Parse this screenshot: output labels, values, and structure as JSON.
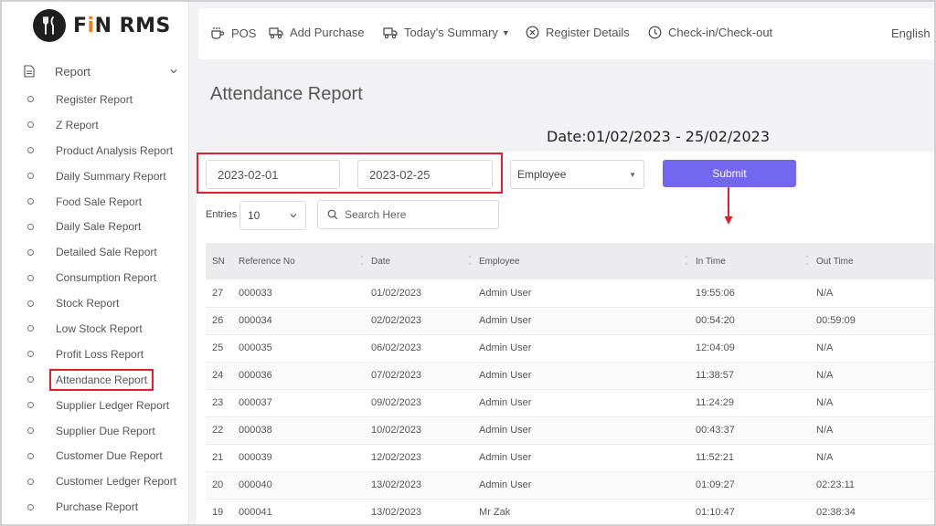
{
  "brand": {
    "prefix": "F",
    "accent": "i",
    "suffix": "N RMS",
    "accent_color": "#ef7f1a"
  },
  "sidebar": {
    "section_label": "Report",
    "items": [
      {
        "label": "Register Report"
      },
      {
        "label": "Z Report"
      },
      {
        "label": "Product Analysis Report"
      },
      {
        "label": "Daily Summary Report"
      },
      {
        "label": "Food Sale Report"
      },
      {
        "label": "Daily Sale Report"
      },
      {
        "label": "Detailed Sale Report"
      },
      {
        "label": "Consumption Report"
      },
      {
        "label": "Stock Report"
      },
      {
        "label": "Low Stock Report"
      },
      {
        "label": "Profit Loss Report"
      },
      {
        "label": "Attendance Report",
        "active": true
      },
      {
        "label": "Supplier Ledger Report"
      },
      {
        "label": "Supplier Due Report"
      },
      {
        "label": "Customer Due Report"
      },
      {
        "label": "Customer Ledger Report"
      },
      {
        "label": "Purchase Report"
      }
    ]
  },
  "topbar": {
    "pos": "POS",
    "add_purchase": "Add Purchase",
    "todays_summary": "Today's Summary",
    "register_details": "Register Details",
    "check_in_out": "Check-in/Check-out",
    "language": "English"
  },
  "page": {
    "title": "Attendance Report",
    "date_range": "Date:01/02/2023 - 25/02/2023"
  },
  "filters": {
    "start_date": "2023-02-01",
    "end_date": "2023-02-25",
    "employee_select": "Employee",
    "submit_label": "Submit",
    "highlight_color": "#e0202a",
    "submit_color": "#7367f0"
  },
  "table_controls": {
    "entries_label": "Entries",
    "entries_value": "10",
    "search_placeholder": "Search Here"
  },
  "table": {
    "columns": [
      "SN",
      "Reference No",
      "Date",
      "Employee",
      "In Time",
      "Out Time"
    ],
    "rows": [
      {
        "sn": "27",
        "ref": "000033",
        "date": "01/02/2023",
        "employee": "Admin User",
        "in": "19:55:06",
        "out": "N/A"
      },
      {
        "sn": "26",
        "ref": "000034",
        "date": "02/02/2023",
        "employee": "Admin User",
        "in": "00:54:20",
        "out": "00:59:09"
      },
      {
        "sn": "25",
        "ref": "000035",
        "date": "06/02/2023",
        "employee": "Admin User",
        "in": "12:04:09",
        "out": "N/A"
      },
      {
        "sn": "24",
        "ref": "000036",
        "date": "07/02/2023",
        "employee": "Admin User",
        "in": "11:38:57",
        "out": "N/A"
      },
      {
        "sn": "23",
        "ref": "000037",
        "date": "09/02/2023",
        "employee": "Admin User",
        "in": "11:24:29",
        "out": "N/A"
      },
      {
        "sn": "22",
        "ref": "000038",
        "date": "10/02/2023",
        "employee": "Admin User",
        "in": "00:43:37",
        "out": "N/A"
      },
      {
        "sn": "21",
        "ref": "000039",
        "date": "12/02/2023",
        "employee": "Admin User",
        "in": "11:52:21",
        "out": "N/A"
      },
      {
        "sn": "20",
        "ref": "000040",
        "date": "13/02/2023",
        "employee": "Admin User",
        "in": "01:09:27",
        "out": "02:23:11"
      },
      {
        "sn": "19",
        "ref": "000041",
        "date": "13/02/2023",
        "employee": "Mr Zak",
        "in": "01:10:47",
        "out": "02:38:34"
      }
    ]
  }
}
